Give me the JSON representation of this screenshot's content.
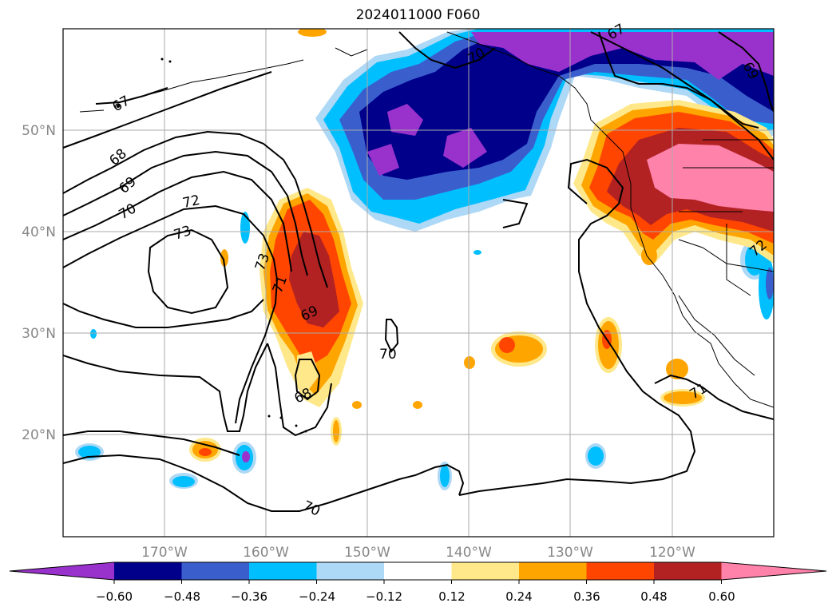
{
  "title": "2024011000 F060",
  "map": {
    "lat_labels": [
      "50°N",
      "40°N",
      "30°N",
      "20°N"
    ],
    "lon_labels": [
      "170°W",
      "160°W",
      "150°W",
      "140°W",
      "130°W",
      "120°W"
    ],
    "label_color": "#888888"
  },
  "contour_labels": [
    "67",
    "68",
    "69",
    "70",
    "72",
    "73",
    "73",
    "71",
    "69",
    "70",
    "68",
    "67",
    "70",
    "69",
    "70",
    "71",
    "72"
  ],
  "colorbar": {
    "tick_labels": [
      "−0.60",
      "−0.48",
      "−0.36",
      "−0.24",
      "−0.12",
      "0.12",
      "0.24",
      "0.36",
      "0.48",
      "0.60"
    ],
    "colors": [
      "#9932cc",
      "#00008b",
      "#3a5fcd",
      "#00bfff",
      "#add8f6",
      "#ffffff",
      "#ffe88a",
      "#ffa500",
      "#ff4500",
      "#b22222",
      "#ff82ab"
    ]
  }
}
